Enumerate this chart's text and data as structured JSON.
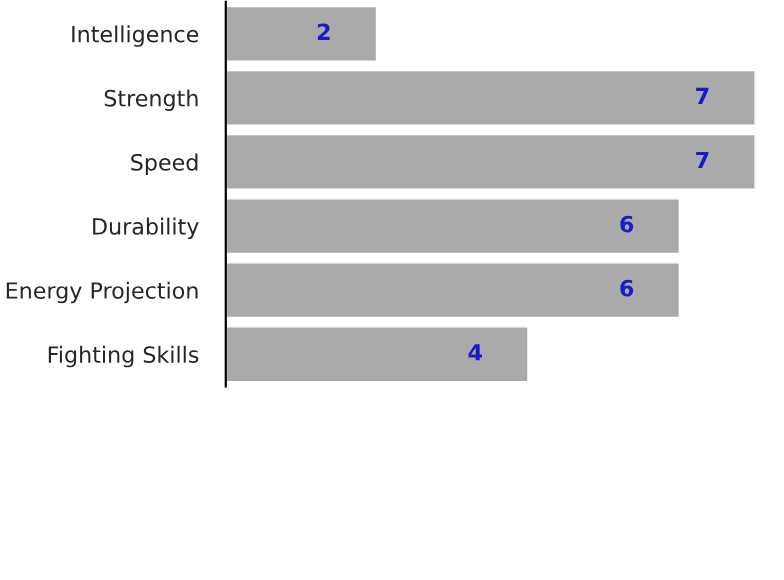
{
  "chart_data": {
    "type": "bar",
    "orientation": "horizontal",
    "categories": [
      "Intelligence",
      "Strength",
      "Speed",
      "Durability",
      "Energy Projection",
      "Fighting Skills"
    ],
    "values": [
      2,
      7,
      7,
      6,
      6,
      4
    ],
    "color": "#aaaaaa",
    "data_labels": true,
    "tick_labels": "y",
    "grid": false,
    "legend": false
  }
}
